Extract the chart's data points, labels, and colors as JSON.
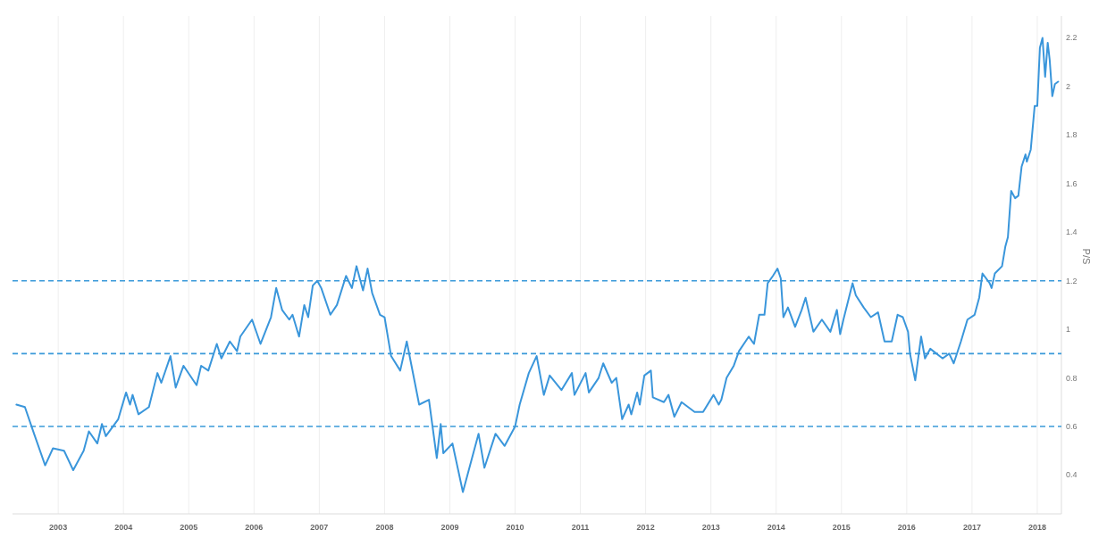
{
  "chart_data": {
    "type": "line",
    "ylabel": "P/S",
    "xlim": [
      2002.3,
      2018.37
    ],
    "xticks": [
      2003,
      2004,
      2005,
      2006,
      2007,
      2008,
      2009,
      2010,
      2011,
      2012,
      2013,
      2014,
      2015,
      2016,
      2017,
      2018
    ],
    "ylim": [
      0.24,
      2.29
    ],
    "yticks": [
      0.4,
      0.6,
      0.8,
      1,
      1.2,
      1.4,
      1.6,
      1.8,
      2,
      2.2
    ],
    "grid": "x",
    "line_style": "solid",
    "marker": "none",
    "ref_lines": [
      {
        "axis": "y",
        "value": 1.2,
        "color": "#3a9ad9",
        "line_style": "dashed"
      },
      {
        "axis": "y",
        "value": 0.9,
        "color": "#3a9ad9",
        "line_style": "dashed"
      },
      {
        "axis": "y",
        "value": 0.6,
        "color": "#3a9ad9",
        "line_style": "dashed"
      }
    ],
    "series": [
      {
        "color": "#3a96db",
        "x": [
          2002.36,
          2002.49,
          2002.63,
          2002.8,
          2002.92,
          2003.09,
          2003.23,
          2003.39,
          2003.47,
          2003.6,
          2003.67,
          2003.73,
          2003.92,
          2004.04,
          2004.1,
          2004.14,
          2004.23,
          2004.39,
          2004.52,
          2004.58,
          2004.72,
          2004.8,
          2004.92,
          2005.12,
          2005.19,
          2005.3,
          2005.43,
          2005.5,
          2005.63,
          2005.74,
          2005.79,
          2005.97,
          2006.1,
          2006.26,
          2006.34,
          2006.43,
          2006.54,
          2006.59,
          2006.69,
          2006.77,
          2006.83,
          2006.9,
          2006.97,
          2007.03,
          2007.17,
          2007.27,
          2007.41,
          2007.5,
          2007.57,
          2007.67,
          2007.74,
          2007.81,
          2007.93,
          2008.0,
          2008.1,
          2008.24,
          2008.34,
          2008.53,
          2008.68,
          2008.8,
          2008.86,
          2008.9,
          2009.04,
          2009.2,
          2009.28,
          2009.44,
          2009.53,
          2009.7,
          2009.84,
          2010.0,
          2010.07,
          2010.21,
          2010.33,
          2010.44,
          2010.53,
          2010.71,
          2010.87,
          2010.91,
          2011.08,
          2011.13,
          2011.28,
          2011.35,
          2011.48,
          2011.55,
          2011.64,
          2011.74,
          2011.78,
          2011.87,
          2011.91,
          2011.98,
          2012.08,
          2012.11,
          2012.28,
          2012.35,
          2012.44,
          2012.55,
          2012.75,
          2012.88,
          2013.04,
          2013.12,
          2013.16,
          2013.24,
          2013.35,
          2013.43,
          2013.58,
          2013.66,
          2013.74,
          2013.82,
          2013.87,
          2013.95,
          2014.02,
          2014.07,
          2014.11,
          2014.18,
          2014.29,
          2014.39,
          2014.45,
          2014.57,
          2014.7,
          2014.83,
          2014.93,
          2014.98,
          2015.03,
          2015.17,
          2015.22,
          2015.34,
          2015.45,
          2015.56,
          2015.66,
          2015.77,
          2015.86,
          2015.94,
          2016.02,
          2016.05,
          2016.13,
          2016.22,
          2016.28,
          2016.36,
          2016.55,
          2016.65,
          2016.72,
          2016.83,
          2016.93,
          2017.04,
          2017.11,
          2017.16,
          2017.27,
          2017.3,
          2017.35,
          2017.46,
          2017.51,
          2017.55,
          2017.6,
          2017.66,
          2017.71,
          2017.76,
          2017.82,
          2017.84,
          2017.9,
          2017.96,
          2018.0,
          2018.04,
          2018.08,
          2018.12,
          2018.16,
          2018.19,
          2018.23,
          2018.27,
          2018.32
        ],
        "values": [
          0.69,
          0.68,
          0.57,
          0.44,
          0.51,
          0.5,
          0.42,
          0.5,
          0.58,
          0.53,
          0.61,
          0.56,
          0.63,
          0.74,
          0.69,
          0.73,
          0.65,
          0.68,
          0.82,
          0.78,
          0.89,
          0.76,
          0.85,
          0.77,
          0.85,
          0.83,
          0.94,
          0.88,
          0.95,
          0.91,
          0.97,
          1.04,
          0.94,
          1.05,
          1.17,
          1.08,
          1.04,
          1.06,
          0.97,
          1.1,
          1.05,
          1.18,
          1.2,
          1.17,
          1.06,
          1.1,
          1.22,
          1.17,
          1.26,
          1.16,
          1.25,
          1.15,
          1.06,
          1.05,
          0.89,
          0.83,
          0.95,
          0.69,
          0.71,
          0.47,
          0.61,
          0.49,
          0.53,
          0.33,
          0.41,
          0.57,
          0.43,
          0.57,
          0.52,
          0.6,
          0.69,
          0.82,
          0.89,
          0.73,
          0.81,
          0.75,
          0.82,
          0.73,
          0.82,
          0.74,
          0.8,
          0.86,
          0.78,
          0.8,
          0.63,
          0.69,
          0.65,
          0.74,
          0.69,
          0.81,
          0.83,
          0.72,
          0.7,
          0.73,
          0.64,
          0.7,
          0.66,
          0.66,
          0.73,
          0.69,
          0.71,
          0.8,
          0.85,
          0.91,
          0.97,
          0.94,
          1.06,
          1.06,
          1.19,
          1.22,
          1.25,
          1.21,
          1.05,
          1.09,
          1.01,
          1.08,
          1.13,
          0.99,
          1.04,
          0.99,
          1.08,
          0.98,
          1.04,
          1.19,
          1.14,
          1.09,
          1.05,
          1.07,
          0.95,
          0.95,
          1.06,
          1.05,
          0.99,
          0.9,
          0.79,
          0.97,
          0.88,
          0.92,
          0.88,
          0.9,
          0.86,
          0.95,
          1.04,
          1.06,
          1.13,
          1.23,
          1.19,
          1.17,
          1.23,
          1.26,
          1.34,
          1.38,
          1.57,
          1.54,
          1.55,
          1.67,
          1.72,
          1.69,
          1.74,
          1.92,
          1.92,
          2.16,
          2.2,
          2.04,
          2.18,
          2.11,
          1.96,
          2.01,
          2.02
        ]
      }
    ]
  }
}
